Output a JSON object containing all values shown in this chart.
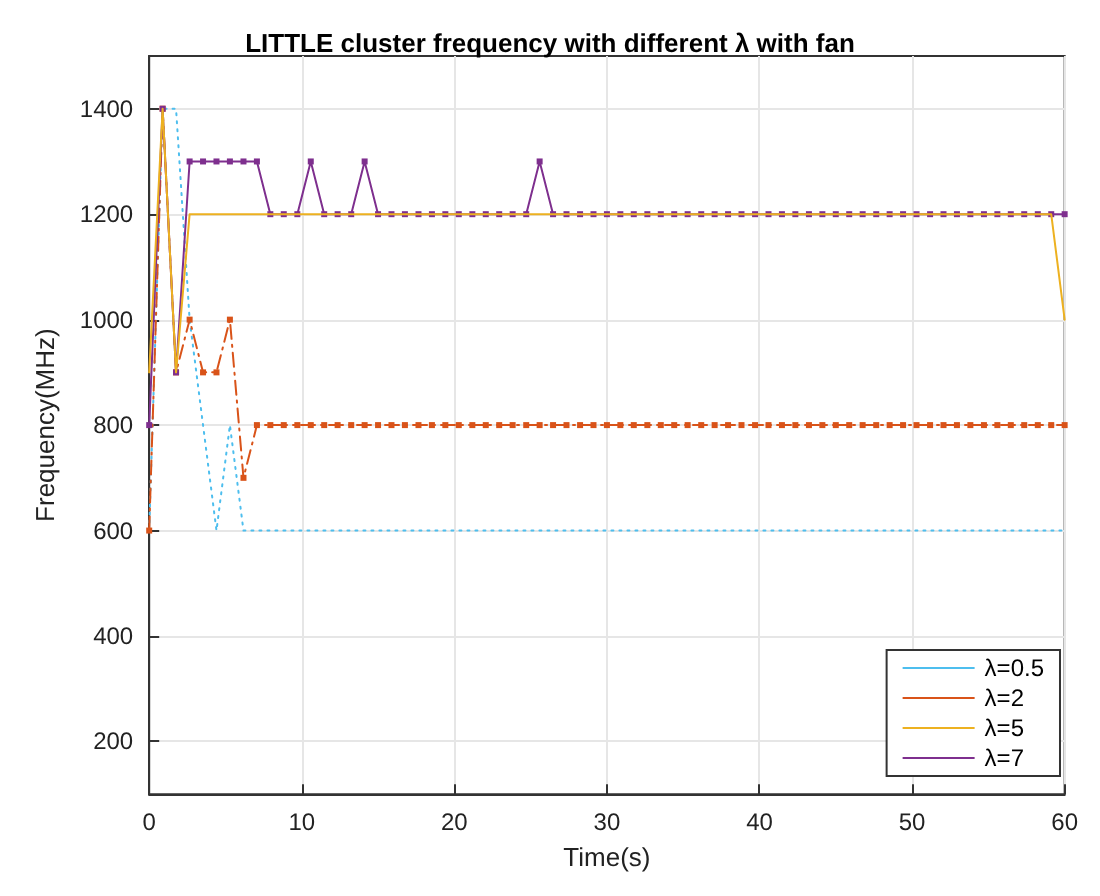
{
  "chart_data": {
    "type": "line",
    "title": "LITTLE cluster frequency with different λ with fan",
    "xlabel": "Time(s)",
    "ylabel": "Frequency(MHz)",
    "x": [
      0,
      0.88,
      1.76,
      2.65,
      3.53,
      4.41,
      5.29,
      6.18,
      7.06,
      7.94,
      8.82,
      9.71,
      10.59,
      11.47,
      12.35,
      13.24,
      14.12,
      15,
      15.88,
      16.76,
      17.65,
      18.53,
      19.41,
      20.29,
      21.18,
      22.06,
      22.94,
      23.82,
      24.71,
      25.59,
      26.47,
      27.35,
      28.24,
      29.12,
      30,
      30.88,
      31.76,
      32.65,
      33.53,
      34.41,
      35.29,
      36.18,
      37.06,
      37.94,
      38.82,
      39.71,
      40.59,
      41.47,
      42.35,
      43.24,
      44.12,
      45,
      45.88,
      46.76,
      47.65,
      48.53,
      49.41,
      50.29,
      51.18,
      52.06,
      52.94,
      53.82,
      54.71,
      55.59,
      56.47,
      57.35,
      58.24,
      59.12,
      60
    ],
    "series": [
      {
        "name": "λ=0.5",
        "color": "#4dbeee",
        "line_style": "dotted",
        "marker": "none",
        "values": [
          600,
          1400,
          1400,
          1000,
          800,
          600,
          800,
          600,
          600,
          600,
          600,
          600,
          600,
          600,
          600,
          600,
          600,
          600,
          600,
          600,
          600,
          600,
          600,
          600,
          600,
          600,
          600,
          600,
          600,
          600,
          600,
          600,
          600,
          600,
          600,
          600,
          600,
          600,
          600,
          600,
          600,
          600,
          600,
          600,
          600,
          600,
          600,
          600,
          600,
          600,
          600,
          600,
          600,
          600,
          600,
          600,
          600,
          600,
          600,
          600,
          600,
          600,
          600,
          600,
          600,
          600,
          600,
          600,
          600
        ]
      },
      {
        "name": "λ=2",
        "color": "#d95319",
        "line_style": "dashdot",
        "marker": "square",
        "values": [
          600,
          1400,
          900,
          1000,
          900,
          900,
          1000,
          700,
          800,
          800,
          800,
          800,
          800,
          800,
          800,
          800,
          800,
          800,
          800,
          800,
          800,
          800,
          800,
          800,
          800,
          800,
          800,
          800,
          800,
          800,
          800,
          800,
          800,
          800,
          800,
          800,
          800,
          800,
          800,
          800,
          800,
          800,
          800,
          800,
          800,
          800,
          800,
          800,
          800,
          800,
          800,
          800,
          800,
          800,
          800,
          800,
          800,
          800,
          800,
          800,
          800,
          800,
          800,
          800,
          800,
          800,
          800,
          800,
          800
        ]
      },
      {
        "name": "λ=5",
        "color": "#edb120",
        "line_style": "solid",
        "marker": "none",
        "values": [
          900,
          1400,
          900,
          1200,
          1200,
          1200,
          1200,
          1200,
          1200,
          1200,
          1200,
          1200,
          1200,
          1200,
          1200,
          1200,
          1200,
          1200,
          1200,
          1200,
          1200,
          1200,
          1200,
          1200,
          1200,
          1200,
          1200,
          1200,
          1200,
          1200,
          1200,
          1200,
          1200,
          1200,
          1200,
          1200,
          1200,
          1200,
          1200,
          1200,
          1200,
          1200,
          1200,
          1200,
          1200,
          1200,
          1200,
          1200,
          1200,
          1200,
          1200,
          1200,
          1200,
          1200,
          1200,
          1200,
          1200,
          1200,
          1200,
          1200,
          1200,
          1200,
          1200,
          1200,
          1200,
          1200,
          1200,
          1200,
          1000
        ]
      },
      {
        "name": "λ=7",
        "color": "#7e2f8e",
        "line_style": "solid",
        "marker": "square",
        "values": [
          800,
          1400,
          900,
          1300,
          1300,
          1300,
          1300,
          1300,
          1300,
          1200,
          1200,
          1200,
          1300,
          1200,
          1200,
          1200,
          1300,
          1200,
          1200,
          1200,
          1200,
          1200,
          1200,
          1200,
          1200,
          1200,
          1200,
          1200,
          1200,
          1300,
          1200,
          1200,
          1200,
          1200,
          1200,
          1200,
          1200,
          1200,
          1200,
          1200,
          1200,
          1200,
          1200,
          1200,
          1200,
          1200,
          1200,
          1200,
          1200,
          1200,
          1200,
          1200,
          1200,
          1200,
          1200,
          1200,
          1200,
          1200,
          1200,
          1200,
          1200,
          1200,
          1200,
          1200,
          1200,
          1200,
          1200,
          1200,
          1200
        ]
      }
    ],
    "xlim": [
      0,
      60
    ],
    "xticks": [
      0,
      10,
      20,
      30,
      40,
      50,
      60
    ],
    "ylim": [
      100,
      1500
    ],
    "yticks": [
      200,
      400,
      600,
      800,
      1000,
      1200,
      1400
    ],
    "grid": true,
    "legend": "bottom right"
  }
}
